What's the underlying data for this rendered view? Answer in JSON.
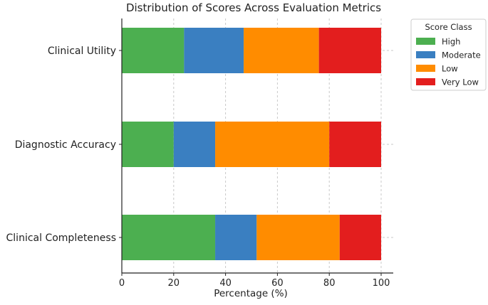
{
  "chart_data": {
    "type": "bar",
    "orientation": "horizontal",
    "stacked": true,
    "title": "Distribution of Scores Across Evaluation Metrics",
    "xlabel": "Percentage (%)",
    "ylabel": "",
    "xlim": [
      0,
      100
    ],
    "xticks": [
      0,
      20,
      40,
      60,
      80,
      100
    ],
    "grid": true,
    "categories": [
      "Clinical Utility",
      "Diagnostic Accuracy",
      "Clinical Completeness"
    ],
    "series": [
      {
        "name": "High",
        "color": "#4caf50",
        "values": [
          24,
          20,
          36
        ]
      },
      {
        "name": "Moderate",
        "color": "#3a7fc1",
        "values": [
          23,
          16,
          16
        ]
      },
      {
        "name": "Low",
        "color": "#ff8c00",
        "values": [
          29,
          44,
          32
        ]
      },
      {
        "name": "Very Low",
        "color": "#e31e1e",
        "values": [
          24,
          20,
          16
        ]
      }
    ],
    "legend": {
      "title": "Score Class",
      "placement": "top-right"
    }
  }
}
